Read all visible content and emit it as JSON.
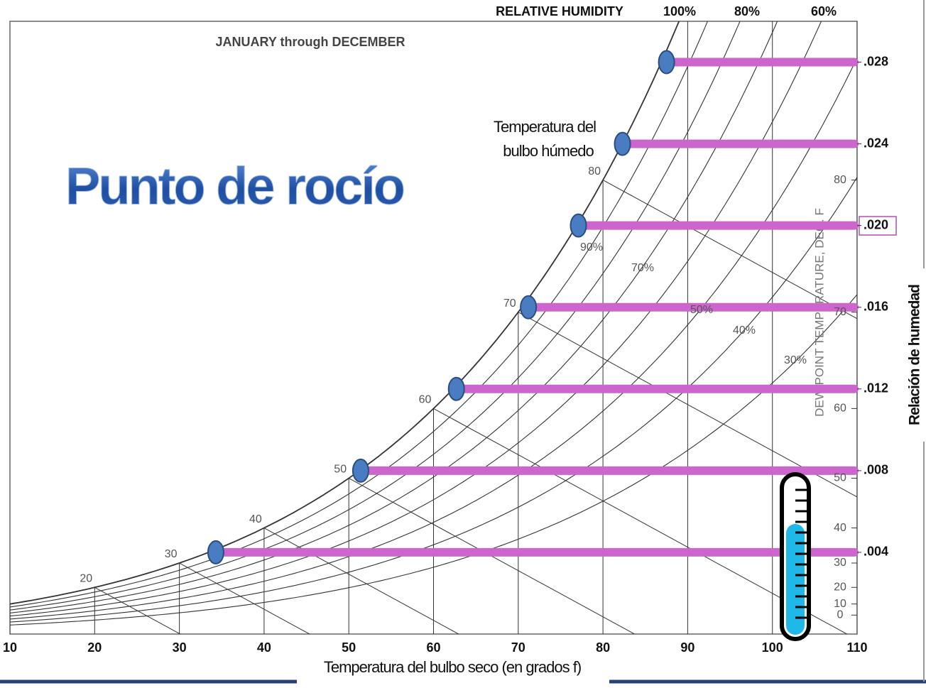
{
  "chart_data": {
    "type": "psychrometric",
    "title": "JANUARY through DECEMBER",
    "rh_axis_label": "RELATIVE HUMIDITY",
    "rh_top": [
      {
        "value": 100,
        "label": "100%"
      },
      {
        "value": 80,
        "label": "80%"
      },
      {
        "value": 60,
        "label": "60%"
      }
    ],
    "rh_inner": [
      {
        "value": 90,
        "label": "90%"
      },
      {
        "value": 70,
        "label": "70%"
      },
      {
        "value": 50,
        "label": "50%"
      },
      {
        "value": 40,
        "label": "40%"
      },
      {
        "value": 30,
        "label": "30%"
      }
    ],
    "annotation": "Punto de rocío",
    "wet_bulb_annotation": [
      "Temperatura del",
      "bulbo húmedo"
    ],
    "xlabel": "Temperatura del bulbo seco (en grados f)",
    "ylabel": "Relación de humedad",
    "dew_point_axis_label": "DEW POINT TEMPERATURE, DEG. F",
    "xlim": [
      10,
      110
    ],
    "xticks": [
      10,
      20,
      30,
      40,
      50,
      60,
      70,
      80,
      90,
      100,
      110
    ],
    "ylim": [
      0,
      0.03
    ],
    "yticks": [
      {
        "value": 0.004,
        "label": ".004"
      },
      {
        "value": 0.008,
        "label": ".008"
      },
      {
        "value": 0.012,
        "label": ".012"
      },
      {
        "value": 0.016,
        "label": ".016"
      },
      {
        "value": 0.02,
        "label": ".020"
      },
      {
        "value": 0.024,
        "label": ".024"
      },
      {
        "value": 0.028,
        "label": ".028"
      }
    ],
    "wet_bulb_ticks": [
      20,
      30,
      40,
      50,
      60,
      70,
      80
    ],
    "dew_point_ticks": [
      0,
      10,
      20,
      30,
      40,
      50,
      60,
      70,
      80
    ],
    "x": [
      34.3,
      51.4,
      62.7,
      71.2,
      77.1,
      82.3,
      87.5
    ],
    "values": [
      0.004,
      0.008,
      0.012,
      0.016,
      0.02,
      0.024,
      0.028
    ],
    "color": "#cc66cc",
    "marker_color": "#4a7cc1"
  }
}
